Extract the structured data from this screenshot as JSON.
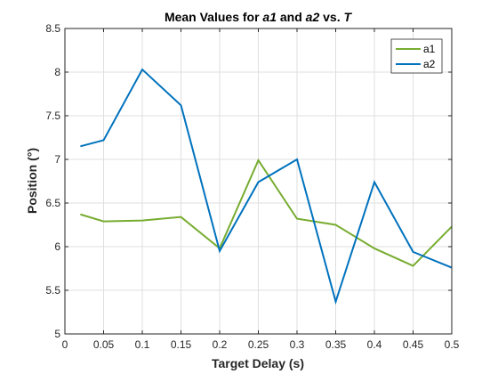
{
  "chart_data": {
    "type": "line",
    "title_parts": [
      {
        "text": "Mean Values for ",
        "italic": false
      },
      {
        "text": "a1",
        "italic": true
      },
      {
        "text": " and ",
        "italic": false
      },
      {
        "text": "a2",
        "italic": true
      },
      {
        "text": " vs. ",
        "italic": false
      },
      {
        "text": "T",
        "italic": true
      }
    ],
    "xlabel": "Target Delay (s)",
    "ylabel": "Position (°)",
    "xlim": [
      0,
      0.5
    ],
    "ylim": [
      5,
      8.5
    ],
    "x_ticks": [
      0,
      0.05,
      0.1,
      0.15,
      0.2,
      0.25,
      0.3,
      0.35,
      0.4,
      0.45,
      0.5
    ],
    "x_tick_labels": [
      "0",
      "0.05",
      "0.1",
      "0.15",
      "0.2",
      "0.25",
      "0.3",
      "0.35",
      "0.4",
      "0.45",
      "0.5"
    ],
    "y_ticks": [
      5,
      5.5,
      6,
      6.5,
      7,
      7.5,
      8,
      8.5
    ],
    "y_tick_labels": [
      "5",
      "5.5",
      "6",
      "6.5",
      "7",
      "7.5",
      "8",
      "8.5"
    ],
    "grid": true,
    "legend_position": "top-right",
    "x": [
      0.02,
      0.05,
      0.1,
      0.15,
      0.2,
      0.25,
      0.3,
      0.35,
      0.4,
      0.45,
      0.5
    ],
    "series": [
      {
        "name": "a1",
        "color": "#77AC30",
        "values": [
          6.37,
          6.29,
          6.3,
          6.34,
          5.98,
          6.99,
          6.32,
          6.25,
          5.98,
          5.78,
          6.23
        ]
      },
      {
        "name": "a2",
        "color": "#0072BD",
        "values": [
          7.15,
          7.22,
          8.03,
          7.62,
          5.95,
          6.74,
          7.0,
          5.37,
          6.74,
          5.94,
          5.76
        ]
      }
    ]
  }
}
